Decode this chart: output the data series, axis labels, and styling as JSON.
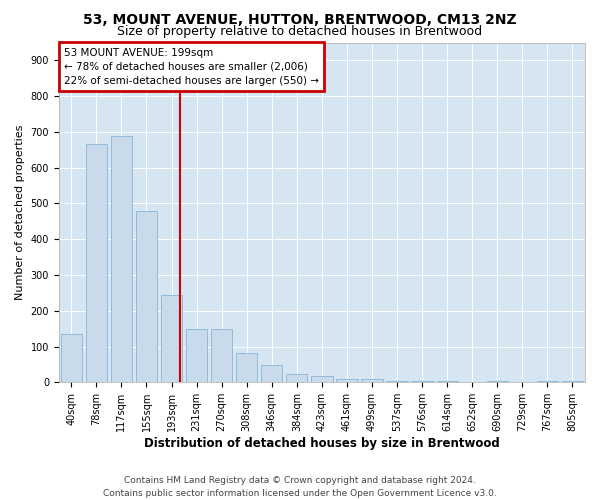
{
  "title1": "53, MOUNT AVENUE, HUTTON, BRENTWOOD, CM13 2NZ",
  "title2": "Size of property relative to detached houses in Brentwood",
  "xlabel": "Distribution of detached houses by size in Brentwood",
  "ylabel": "Number of detached properties",
  "categories": [
    "40sqm",
    "78sqm",
    "117sqm",
    "155sqm",
    "193sqm",
    "231sqm",
    "270sqm",
    "308sqm",
    "346sqm",
    "384sqm",
    "423sqm",
    "461sqm",
    "499sqm",
    "537sqm",
    "576sqm",
    "614sqm",
    "652sqm",
    "690sqm",
    "729sqm",
    "767sqm",
    "805sqm"
  ],
  "values": [
    135,
    665,
    690,
    480,
    245,
    148,
    148,
    83,
    48,
    22,
    18,
    10,
    8,
    5,
    5,
    5,
    0,
    5,
    0,
    5,
    5
  ],
  "bar_color": "#c9daea",
  "bar_edge_color": "#7aadd4",
  "vline_color": "#cc0000",
  "vline_xindex": 4,
  "annotation_line1": "53 MOUNT AVENUE: 199sqm",
  "annotation_line2": "← 78% of detached houses are smaller (2,006)",
  "annotation_line3": "22% of semi-detached houses are larger (550) →",
  "annotation_box_facecolor": "#ffffff",
  "annotation_box_edgecolor": "#cc0000",
  "ylim": [
    0,
    950
  ],
  "yticks": [
    0,
    100,
    200,
    300,
    400,
    500,
    600,
    700,
    800,
    900
  ],
  "footer1": "Contains HM Land Registry data © Crown copyright and database right 2024.",
  "footer2": "Contains public sector information licensed under the Open Government Licence v3.0.",
  "plot_bg_color": "#d5e5f2",
  "title1_fontsize": 10,
  "title2_fontsize": 9,
  "annot_fontsize": 7.5,
  "footer_fontsize": 6.5,
  "tick_fontsize": 7,
  "ylabel_fontsize": 8,
  "xlabel_fontsize": 8.5
}
